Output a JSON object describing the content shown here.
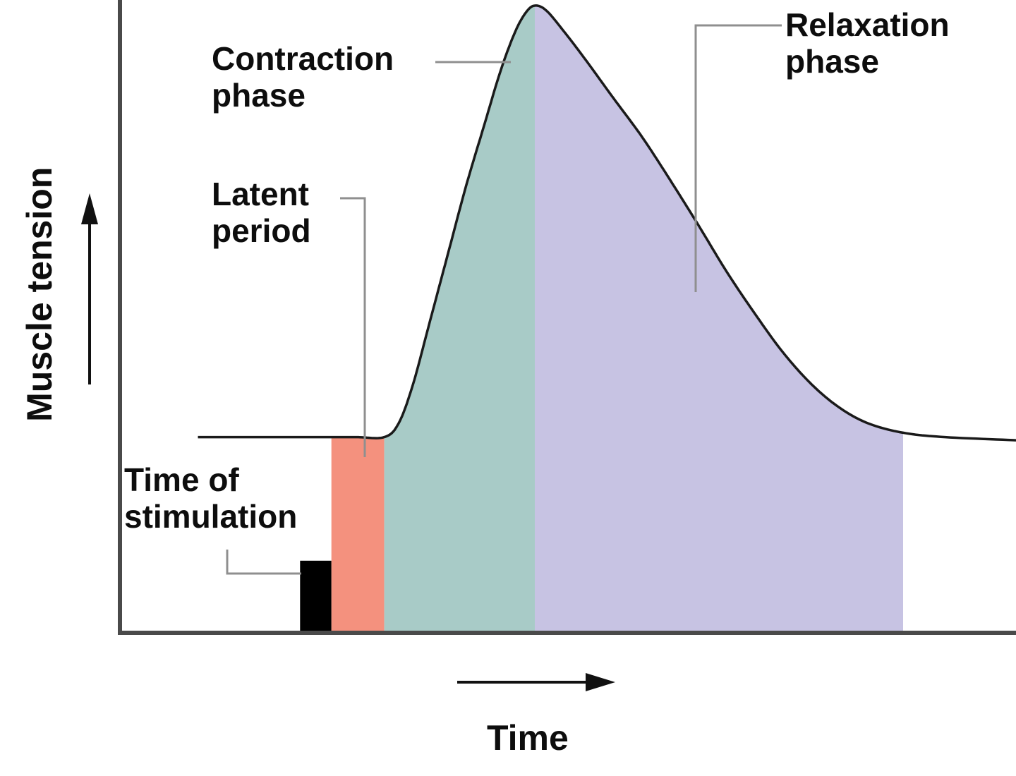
{
  "labels": {
    "y_axis": "Muscle tension",
    "x_axis": "Time",
    "contraction_phase": "Contraction\nphase",
    "latent_period": "Latent\nperiod",
    "relaxation_phase": "Relaxation\nphase",
    "time_of_stimulation": "Time of\nstimulation"
  },
  "colors": {
    "latent_region": "#f4917e",
    "contraction_region": "#a8cbc7",
    "relaxation_region": "#c7c3e3",
    "stimulation_bar": "#000000",
    "curve": "#1a1a1a",
    "axis": "#4a4a4a",
    "leader": "#8f8f8f"
  },
  "chart_data": {
    "type": "area",
    "title": "",
    "xlabel": "Time",
    "ylabel": "Muscle tension",
    "axes_note": "Axes are qualitative (no tick labels); x given in relative time units 0-100, y as relative tension 0-1",
    "xlim": [
      0,
      100
    ],
    "ylim": [
      0,
      1
    ],
    "grid": false,
    "legend": false,
    "baseline_tension": 0.312,
    "curve": {
      "x": [
        8.7,
        19.7,
        23.6,
        26.5,
        29.5,
        31.1,
        32.7,
        34.6,
        36.6,
        38.6,
        40.6,
        42.5,
        44.1,
        45.3,
        46.3,
        47.6,
        49.6,
        52.0,
        55.1,
        58.3,
        61.4,
        64.6,
        67.7,
        70.9,
        74.0,
        77.2,
        80.3,
        83.5,
        87.4,
        92.1,
        100
      ],
      "y": [
        0.312,
        0.312,
        0.312,
        0.312,
        0.312,
        0.334,
        0.396,
        0.497,
        0.604,
        0.711,
        0.807,
        0.897,
        0.958,
        0.989,
        1.0,
        0.992,
        0.958,
        0.913,
        0.852,
        0.79,
        0.722,
        0.649,
        0.576,
        0.508,
        0.447,
        0.396,
        0.359,
        0.334,
        0.319,
        0.312,
        0.307
      ]
    },
    "regions": [
      {
        "name": "Time of stimulation",
        "kind": "bar",
        "x0": 20.1,
        "x1": 23.6,
        "top": 0.115,
        "color": "#000000"
      },
      {
        "name": "Latent period",
        "kind": "area",
        "x0": 23.6,
        "x1": 29.5,
        "color": "#f4917e"
      },
      {
        "name": "Contraction phase",
        "kind": "area",
        "x0": 29.5,
        "x1": 46.3,
        "color": "#a8cbc7"
      },
      {
        "name": "Relaxation phase",
        "kind": "area",
        "x0": 46.3,
        "x1": 87.4,
        "color": "#c7c3e3"
      }
    ]
  }
}
